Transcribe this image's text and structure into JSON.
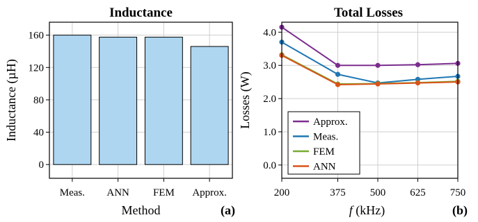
{
  "chart_data": [
    {
      "type": "bar",
      "title": "Inductance",
      "categories": [
        "Meas.",
        "ANN",
        "FEM",
        "Approx."
      ],
      "values": [
        160,
        157.5,
        157.5,
        146
      ],
      "xlabel": "Method",
      "ylabel": "Inductance (µH)",
      "ylim": [
        -17,
        176
      ],
      "yticks": [
        0,
        40,
        80,
        120,
        160
      ],
      "ytick_labels": [
        "0",
        "40",
        "80",
        "120",
        "160"
      ],
      "grid": true,
      "bar_color": "#aed6f1",
      "panel_label": "(a)"
    },
    {
      "type": "line",
      "title": "Total Losses",
      "x": [
        200,
        375,
        500,
        625,
        750
      ],
      "xtick_labels": [
        "200",
        "375",
        "500",
        "625",
        "750"
      ],
      "xlabel_italic": "f",
      "xlabel_rest": " (kHz)",
      "ylabel": "Losses (W)",
      "xlim": [
        200,
        750
      ],
      "ylim": [
        -0.4,
        4.3
      ],
      "yticks": [
        0,
        1,
        2,
        3,
        4
      ],
      "ytick_labels": [
        "0.0",
        "1.0",
        "2.0",
        "3.0",
        "4.0"
      ],
      "grid": true,
      "legend_position": "bottom-left",
      "panel_label": "(b)",
      "series": [
        {
          "name": "Approx.",
          "color": "#7b2d8e",
          "values": [
            4.15,
            3.0,
            3.0,
            3.02,
            3.06
          ]
        },
        {
          "name": "Meas.",
          "color": "#1f77b4",
          "values": [
            3.7,
            2.73,
            2.47,
            2.58,
            2.67
          ]
        },
        {
          "name": "FEM",
          "color": "#77ac30",
          "values": [
            3.32,
            2.44,
            2.45,
            2.48,
            2.52
          ]
        },
        {
          "name": "ANN",
          "color": "#d95319",
          "values": [
            3.3,
            2.42,
            2.44,
            2.47,
            2.5
          ]
        }
      ]
    }
  ]
}
